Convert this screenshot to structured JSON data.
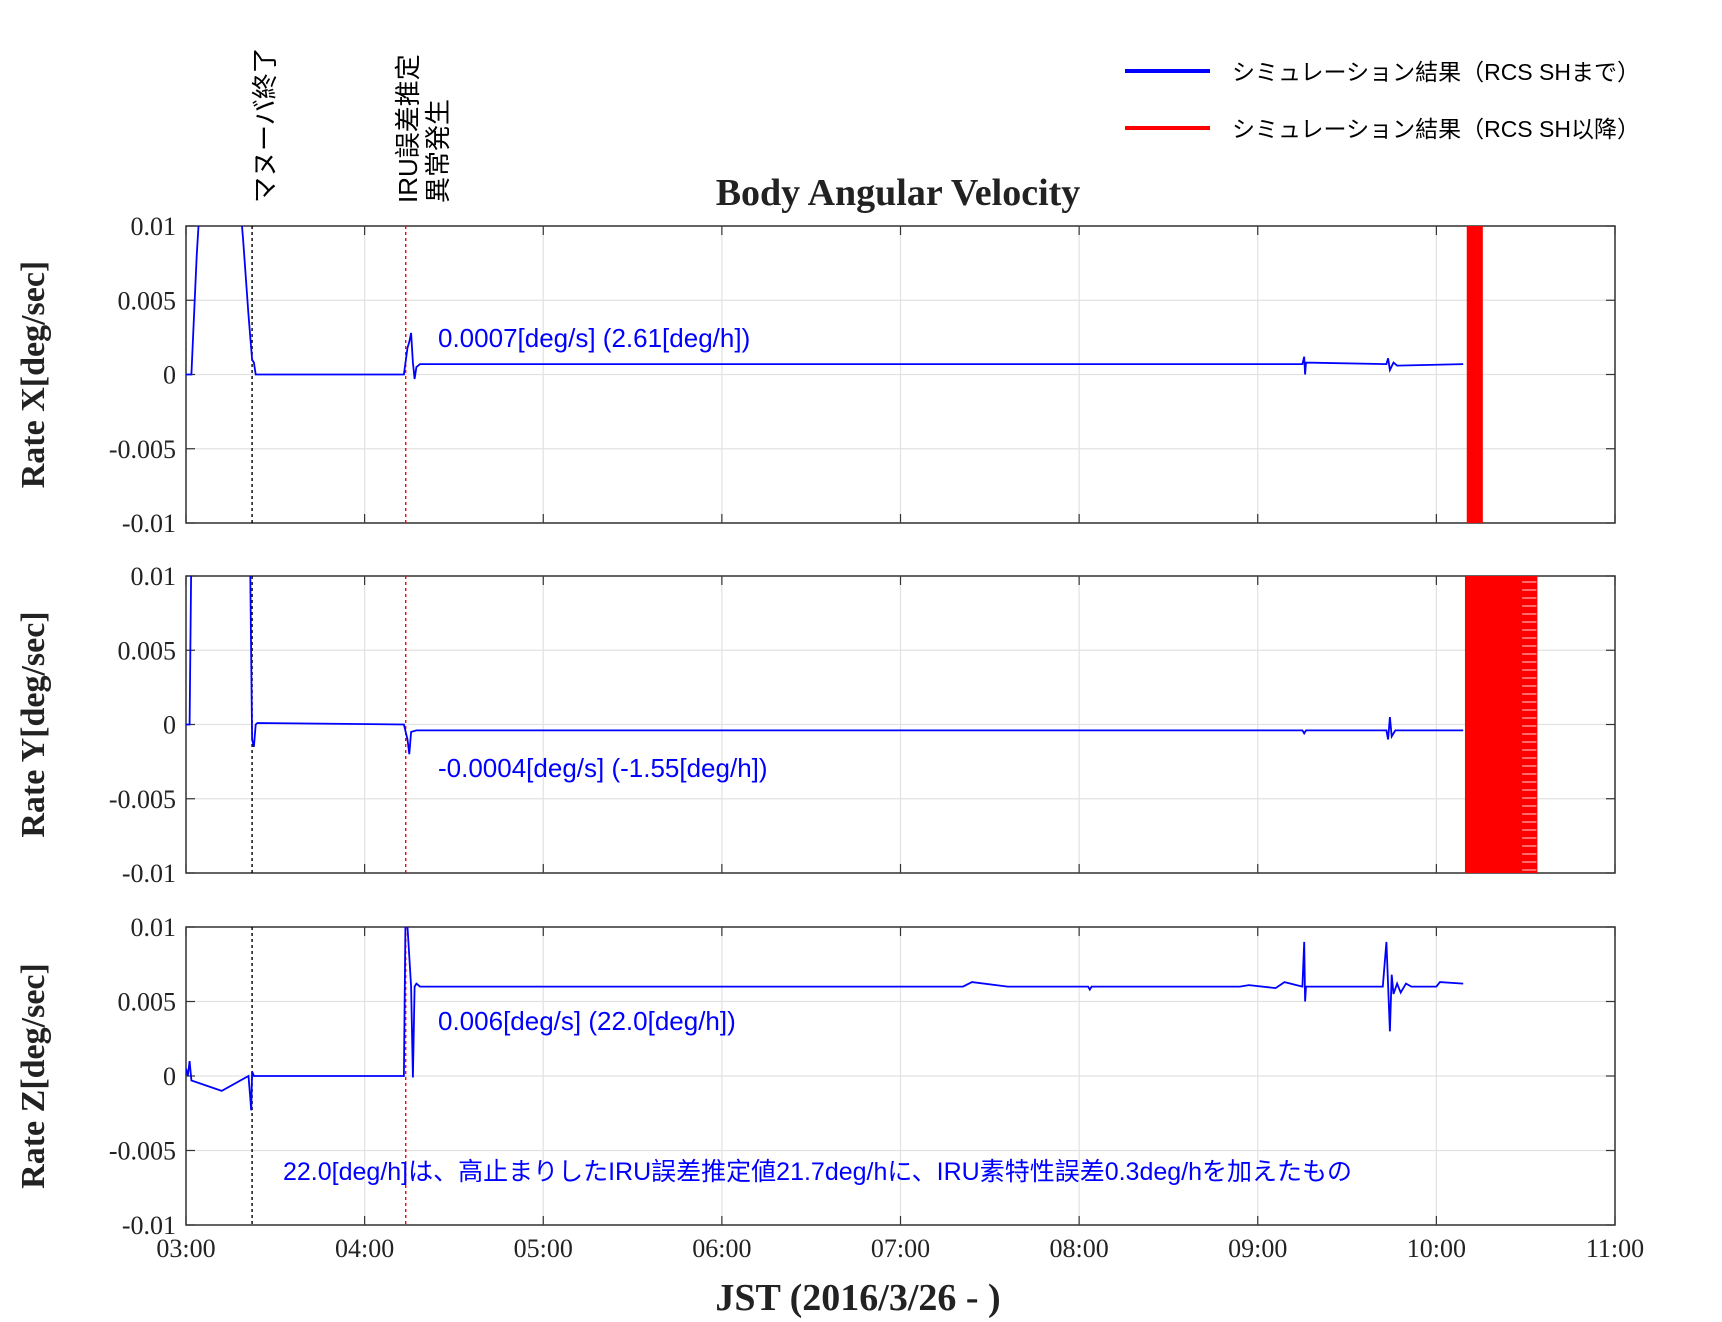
{
  "chart_data": {
    "type": "line",
    "title": "Body Angular Velocity",
    "xlabel": "JST (2016/3/26 - )",
    "x_unit": "hours (JST)",
    "xlim": [
      3.0,
      11.0
    ],
    "x_tick_values": [
      3,
      4,
      5,
      6,
      7,
      8,
      9,
      10,
      11
    ],
    "x_tick_labels": [
      "03:00",
      "04:00",
      "05:00",
      "06:00",
      "07:00",
      "08:00",
      "09:00",
      "10:00",
      "11:00"
    ],
    "y_tick_values": [
      0.01,
      0.005,
      0,
      -0.005,
      -0.01
    ],
    "y_tick_labels": [
      "0.01",
      "0.005",
      "0",
      "-0.005",
      "-0.01"
    ],
    "grid": true,
    "legend": {
      "placement": "top-right",
      "entries": [
        {
          "name": "シミュレーション結果（RCS SHまで）",
          "color": "#0000ff"
        },
        {
          "name": "シミュレーション結果（RCS SH以降）",
          "color": "#ff0000"
        }
      ]
    },
    "events": [
      {
        "x": 3.37,
        "label": "マヌーバ終了",
        "color": "#000000"
      },
      {
        "x": 4.23,
        "label_lines": [
          "IRU誤差推定",
          "異常発生"
        ],
        "color": "#ff0000"
      }
    ],
    "panels": [
      {
        "ylabel": "Rate X[deg/sec]",
        "ylim": [
          -0.01,
          0.01
        ],
        "annotation": "0.0007[deg/s]  (2.61[deg/h])",
        "series": [
          {
            "name": "シミュレーション結果（RCS SHまで）",
            "color": "#0000ff",
            "points": [
              [
                3.0,
                0
              ],
              [
                3.03,
                0
              ],
              [
                3.06,
                0.008
              ],
              [
                3.08,
                0.012
              ],
              [
                3.3,
                0.012
              ],
              [
                3.32,
                0.009
              ],
              [
                3.35,
                0.004
              ],
              [
                3.37,
                0.001
              ],
              [
                3.38,
                0.0008
              ],
              [
                3.39,
                0
              ],
              [
                4.22,
                0
              ],
              [
                4.24,
                0.0018
              ],
              [
                4.25,
                0.0022
              ],
              [
                4.26,
                0.0028
              ],
              [
                4.27,
                0.0008
              ],
              [
                4.28,
                -0.0003
              ],
              [
                4.29,
                0.0005
              ],
              [
                4.31,
                0.0007
              ],
              [
                9.25,
                0.0007
              ],
              [
                9.26,
                0.0012
              ],
              [
                9.265,
                0.0
              ],
              [
                9.27,
                0.0008
              ],
              [
                9.72,
                0.0007
              ],
              [
                9.73,
                0.0011
              ],
              [
                9.74,
                0.0003
              ],
              [
                9.76,
                0.0008
              ],
              [
                9.78,
                0.0006
              ],
              [
                10.15,
                0.0007
              ]
            ]
          },
          {
            "name": "シミュレーション結果（RCS SH以降）",
            "color": "#ff0000",
            "band": [
              10.17,
              10.26,
              -0.01,
              0.01
            ]
          }
        ]
      },
      {
        "ylabel": "Rate Y[deg/sec]",
        "ylim": [
          -0.01,
          0.01
        ],
        "annotation": "-0.0004[deg/s] (-1.55[deg/h])",
        "series": [
          {
            "name": "シミュレーション結果（RCS SHまで）",
            "color": "#0000ff",
            "points": [
              [
                3.0,
                0
              ],
              [
                3.02,
                0
              ],
              [
                3.03,
                0.012
              ],
              [
                3.35,
                0.012
              ],
              [
                3.36,
                0.01
              ],
              [
                3.37,
                -0.001
              ],
              [
                3.38,
                -0.0015
              ],
              [
                3.39,
                0
              ],
              [
                3.4,
                0.0001
              ],
              [
                4.22,
                0
              ],
              [
                4.24,
                -0.001
              ],
              [
                4.25,
                -0.002
              ],
              [
                4.26,
                -0.0005
              ],
              [
                4.29,
                -0.0004
              ],
              [
                9.25,
                -0.0004
              ],
              [
                9.26,
                -0.0006
              ],
              [
                9.27,
                -0.0004
              ],
              [
                9.72,
                -0.0004
              ],
              [
                9.73,
                -0.001
              ],
              [
                9.74,
                0.0005
              ],
              [
                9.75,
                -0.0008
              ],
              [
                9.77,
                -0.0004
              ],
              [
                10.15,
                -0.0004
              ]
            ]
          },
          {
            "name": "シミュレーション結果（RCS SH以降）",
            "color": "#ff0000",
            "band": [
              10.16,
              10.48,
              -0.01,
              0.01
            ],
            "hatch": [
              10.48,
              10.56
            ]
          }
        ]
      },
      {
        "ylabel": "Rate Z[deg/sec]",
        "ylim": [
          -0.01,
          0.01
        ],
        "annotation": "0.006[deg/s] (22.0[deg/h])",
        "note": "22.0[deg/h]は、高止まりしたIRU誤差推定値21.7deg/hに、IRU素特性誤差0.3deg/hを加えたもの",
        "series": [
          {
            "name": "シミュレーション結果（RCS SHまで）",
            "color": "#0000ff",
            "points": [
              [
                3.0,
                0.0005
              ],
              [
                3.01,
                0
              ],
              [
                3.02,
                0.001
              ],
              [
                3.03,
                -0.0003
              ],
              [
                3.2,
                -0.001
              ],
              [
                3.35,
                0.0
              ],
              [
                3.36,
                -0.0015
              ],
              [
                3.365,
                -0.0023
              ],
              [
                3.37,
                0.0003
              ],
              [
                3.38,
                0
              ],
              [
                4.22,
                0
              ],
              [
                4.23,
                0.012
              ],
              [
                4.26,
                0.006
              ],
              [
                4.27,
                -0.0001
              ],
              [
                4.28,
                0.006
              ],
              [
                4.29,
                0.0062
              ],
              [
                4.31,
                0.006
              ],
              [
                7.35,
                0.006
              ],
              [
                7.4,
                0.0063
              ],
              [
                7.6,
                0.006
              ],
              [
                8.05,
                0.006
              ],
              [
                8.06,
                0.0058
              ],
              [
                8.07,
                0.006
              ],
              [
                8.9,
                0.006
              ],
              [
                8.95,
                0.0061
              ],
              [
                9.1,
                0.0059
              ],
              [
                9.15,
                0.0063
              ],
              [
                9.25,
                0.006
              ],
              [
                9.26,
                0.009
              ],
              [
                9.265,
                0.005
              ],
              [
                9.27,
                0.006
              ],
              [
                9.7,
                0.006
              ],
              [
                9.72,
                0.009
              ],
              [
                9.74,
                0.003
              ],
              [
                9.75,
                0.0068
              ],
              [
                9.76,
                0.0055
              ],
              [
                9.78,
                0.0062
              ],
              [
                9.8,
                0.0056
              ],
              [
                9.83,
                0.0062
              ],
              [
                9.86,
                0.006
              ],
              [
                10.0,
                0.006
              ],
              [
                10.02,
                0.0063
              ],
              [
                10.15,
                0.0062
              ]
            ]
          }
        ]
      }
    ]
  }
}
